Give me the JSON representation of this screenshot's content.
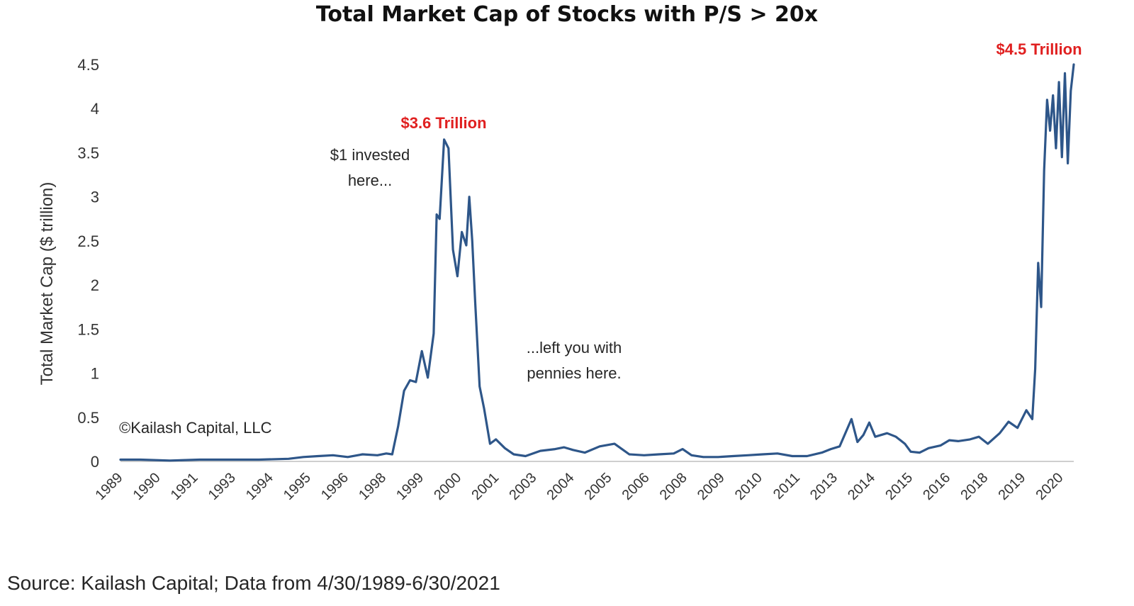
{
  "chart_data": {
    "type": "line",
    "title": "Total Market Cap of Stocks with P/S > 20x",
    "ylabel": "Total Market Cap ($ trillion)",
    "xlabel": "",
    "ylim": [
      0,
      4.5
    ],
    "yticks": [
      "0",
      "0.5",
      "1",
      "1.5",
      "2",
      "2.5",
      "3",
      "3.5",
      "4",
      "4.5"
    ],
    "xticks": [
      "1989",
      "1990",
      "1991",
      "1993",
      "1994",
      "1995",
      "1996",
      "1998",
      "1999",
      "2000",
      "2001",
      "2003",
      "2004",
      "2005",
      "2006",
      "2008",
      "2009",
      "2010",
      "2011",
      "2013",
      "2014",
      "2015",
      "2016",
      "2018",
      "2019",
      "2020"
    ],
    "grid": false,
    "legend": "none",
    "line_color": "#2e5689",
    "series": [
      {
        "x": [
          1989.33,
          1990,
          1991,
          1992,
          1993,
          1994,
          1995,
          1995.5,
          1996,
          1996.5,
          1997,
          1997.5,
          1998,
          1998.3,
          1998.5,
          1998.7,
          1998.9,
          1999.1,
          1999.3,
          1999.5,
          1999.7,
          1999.9,
          2000.0,
          2000.1,
          2000.25,
          2000.4,
          2000.55,
          2000.7,
          2000.85,
          2001.0,
          2001.1,
          2001.2,
          2001.3,
          2001.45,
          2001.6,
          2001.8,
          2002,
          2002.3,
          2002.6,
          2003,
          2003.5,
          2004,
          2004.3,
          2004.6,
          2005,
          2005.5,
          2006,
          2006.5,
          2007,
          2007.5,
          2008,
          2008.3,
          2008.6,
          2009,
          2009.5,
          2010,
          2010.5,
          2011,
          2011.5,
          2012,
          2012.5,
          2013,
          2013.3,
          2013.6,
          2014,
          2014.2,
          2014.4,
          2014.6,
          2014.8,
          2015,
          2015.2,
          2015.5,
          2015.8,
          2016,
          2016.3,
          2016.6,
          2017,
          2017.3,
          2017.6,
          2018,
          2018.3,
          2018.6,
          2019,
          2019.3,
          2019.6,
          2019.9,
          2020.1,
          2020.2,
          2020.3,
          2020.4,
          2020.5,
          2020.6,
          2020.7,
          2020.8,
          2020.9,
          2021.0,
          2021.1,
          2021.2,
          2021.3,
          2021.4,
          2021.5
        ],
        "y": [
          0.02,
          0.02,
          0.01,
          0.02,
          0.02,
          0.02,
          0.03,
          0.05,
          0.06,
          0.07,
          0.05,
          0.08,
          0.07,
          0.09,
          0.08,
          0.4,
          0.8,
          0.92,
          0.9,
          1.25,
          0.95,
          1.45,
          2.8,
          2.75,
          3.65,
          3.55,
          2.4,
          2.1,
          2.6,
          2.45,
          3.0,
          2.5,
          1.8,
          0.85,
          0.6,
          0.2,
          0.25,
          0.15,
          0.08,
          0.06,
          0.12,
          0.14,
          0.16,
          0.13,
          0.1,
          0.17,
          0.2,
          0.08,
          0.07,
          0.08,
          0.09,
          0.14,
          0.07,
          0.05,
          0.05,
          0.06,
          0.07,
          0.08,
          0.09,
          0.06,
          0.06,
          0.1,
          0.14,
          0.17,
          0.48,
          0.22,
          0.3,
          0.44,
          0.28,
          0.3,
          0.32,
          0.28,
          0.2,
          0.11,
          0.1,
          0.15,
          0.18,
          0.24,
          0.23,
          0.25,
          0.28,
          0.2,
          0.32,
          0.45,
          0.38,
          0.58,
          0.48,
          1.05,
          2.25,
          1.75,
          3.3,
          4.1,
          3.75,
          4.15,
          3.55,
          4.3,
          3.45,
          4.4,
          3.38,
          4.2,
          4.5
        ]
      }
    ],
    "annotations": {
      "peak_2000": "$3.6 Trillion",
      "peak_2021": "$4.5 Trillion",
      "invested_line1": "$1 invested",
      "invested_line2": "here...",
      "pennies_line1": "...left you with",
      "pennies_line2": "pennies here.",
      "copyright": "©Kailash Capital, LLC"
    }
  },
  "source_note": "Source: Kailash Capital; Data from 4/30/1989-6/30/2021"
}
